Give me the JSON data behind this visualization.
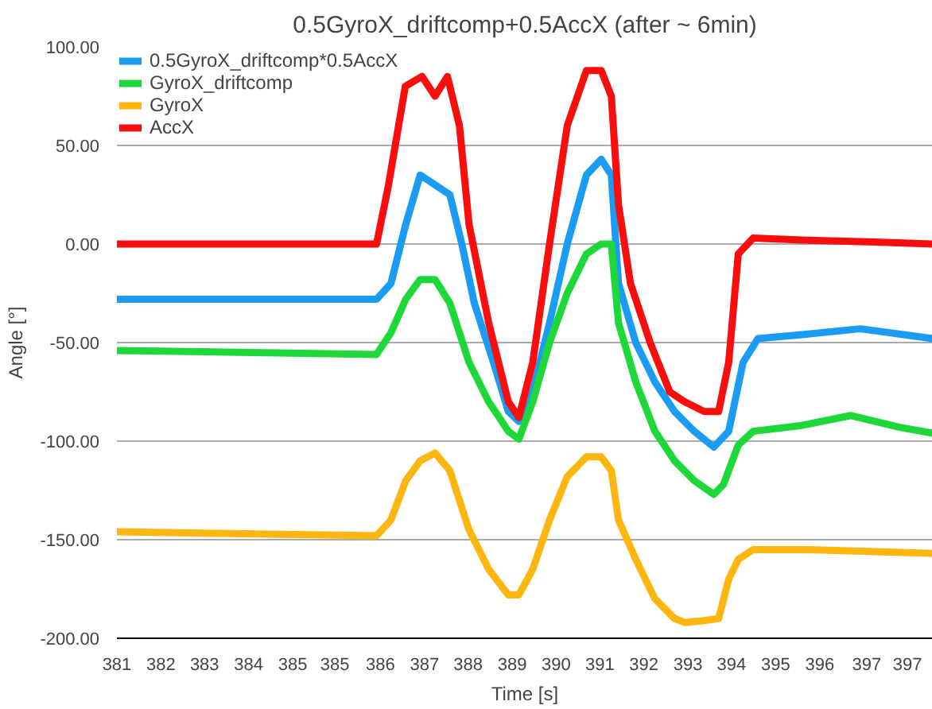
{
  "chart_data": {
    "type": "line",
    "title": "0.5GyroX_driftcomp+0.5AccX (after ~ 6min)",
    "xlabel": "Time [s]",
    "ylabel": "Angle [°]",
    "xlim": [
      380.9,
      397.93
    ],
    "ylim": [
      -200,
      100
    ],
    "xticks": [
      {
        "value": 380.9,
        "label": "381"
      },
      {
        "value": 381.82,
        "label": "382"
      },
      {
        "value": 382.73,
        "label": "383"
      },
      {
        "value": 383.65,
        "label": "384"
      },
      {
        "value": 384.57,
        "label": "385"
      },
      {
        "value": 385.45,
        "label": "385"
      },
      {
        "value": 386.4,
        "label": "386"
      },
      {
        "value": 387.32,
        "label": "387"
      },
      {
        "value": 388.23,
        "label": "388"
      },
      {
        "value": 389.15,
        "label": "389"
      },
      {
        "value": 390.07,
        "label": "390"
      },
      {
        "value": 390.98,
        "label": "391"
      },
      {
        "value": 391.9,
        "label": "392"
      },
      {
        "value": 392.82,
        "label": "393"
      },
      {
        "value": 393.73,
        "label": "394"
      },
      {
        "value": 394.65,
        "label": "395"
      },
      {
        "value": 395.57,
        "label": "396"
      },
      {
        "value": 396.55,
        "label": "397"
      },
      {
        "value": 397.4,
        "label": "397"
      }
    ],
    "yticks": [
      {
        "value": -200,
        "label": "-200.00"
      },
      {
        "value": -150,
        "label": "-150.00"
      },
      {
        "value": -100,
        "label": "-100.00"
      },
      {
        "value": -50,
        "label": "-50.00"
      },
      {
        "value": 0,
        "label": "0.00"
      },
      {
        "value": 50,
        "label": "50.00"
      },
      {
        "value": 100,
        "label": "100.00"
      }
    ],
    "grid": "y",
    "legend": "top left",
    "marker": "none",
    "line_style": "solid",
    "series": [
      {
        "name": "0.5GyroX_driftcomp*0.5AccX",
        "color": "#1a9cf5",
        "x": [
          380.9,
          386.32,
          386.62,
          386.93,
          387.23,
          387.54,
          387.85,
          388.1,
          388.36,
          388.76,
          389.07,
          389.29,
          389.58,
          389.93,
          390.3,
          390.7,
          391.01,
          391.22,
          391.37,
          391.73,
          392.13,
          392.54,
          392.95,
          393.36,
          393.67,
          393.97,
          394.28,
          395.2,
          396.42,
          397.93
        ],
        "values": [
          -28,
          -28,
          -20,
          10,
          35,
          30,
          25,
          0,
          -30,
          -60,
          -85,
          -90,
          -75,
          -40,
          0,
          35,
          43,
          35,
          -20,
          -50,
          -70,
          -85,
          -95,
          -103,
          -95,
          -60,
          -48,
          -46,
          -43,
          -48
        ]
      },
      {
        "name": "GyroX_driftcomp",
        "color": "#1ed83a",
        "x": [
          380.9,
          386.32,
          386.62,
          386.93,
          387.23,
          387.54,
          387.85,
          388.25,
          388.66,
          389.07,
          389.29,
          389.58,
          389.93,
          390.3,
          390.7,
          391.01,
          391.22,
          391.37,
          391.73,
          392.13,
          392.54,
          392.95,
          393.36,
          393.56,
          393.87,
          394.18,
          395.2,
          396.22,
          397.24,
          397.93
        ],
        "values": [
          -54,
          -56,
          -45,
          -28,
          -18,
          -18,
          -30,
          -60,
          -80,
          -95,
          -99,
          -80,
          -50,
          -25,
          -5,
          0,
          0,
          -40,
          -70,
          -95,
          -110,
          -120,
          -127,
          -122,
          -102,
          -95,
          -92,
          -87,
          -93,
          -96
        ]
      },
      {
        "name": "GyroX",
        "color": "#fdb50f",
        "x": [
          380.9,
          386.32,
          386.62,
          386.93,
          387.23,
          387.54,
          387.85,
          388.25,
          388.66,
          389.07,
          389.29,
          389.58,
          389.93,
          390.3,
          390.7,
          391.01,
          391.22,
          391.37,
          391.73,
          392.13,
          392.54,
          392.75,
          393.16,
          393.46,
          393.67,
          393.87,
          394.18,
          395.2,
          396.73,
          397.93
        ],
        "values": [
          -146,
          -148,
          -140,
          -120,
          -110,
          -106,
          -115,
          -145,
          -165,
          -178,
          -178,
          -165,
          -140,
          -118,
          -108,
          -108,
          -115,
          -140,
          -160,
          -180,
          -190,
          -192,
          -191,
          -190,
          -170,
          -160,
          -155,
          -155,
          -156,
          -157
        ]
      },
      {
        "name": "AccX",
        "color": "#fb0d0d",
        "x": [
          380.9,
          386.32,
          386.57,
          386.92,
          387.27,
          387.54,
          387.8,
          388.05,
          388.25,
          388.66,
          389.07,
          389.29,
          389.58,
          389.93,
          390.3,
          390.7,
          391.01,
          391.22,
          391.37,
          391.62,
          392.03,
          392.44,
          392.75,
          393.16,
          393.46,
          393.67,
          393.87,
          394.18,
          395.2,
          396.73,
          397.93
        ],
        "values": [
          0,
          0,
          30,
          80,
          85,
          75,
          85,
          60,
          10,
          -40,
          -80,
          -88,
          -60,
          0,
          60,
          88,
          88,
          75,
          20,
          -20,
          -50,
          -75,
          -80,
          -85,
          -85,
          -60,
          -5,
          3,
          2,
          1,
          0
        ]
      }
    ]
  }
}
